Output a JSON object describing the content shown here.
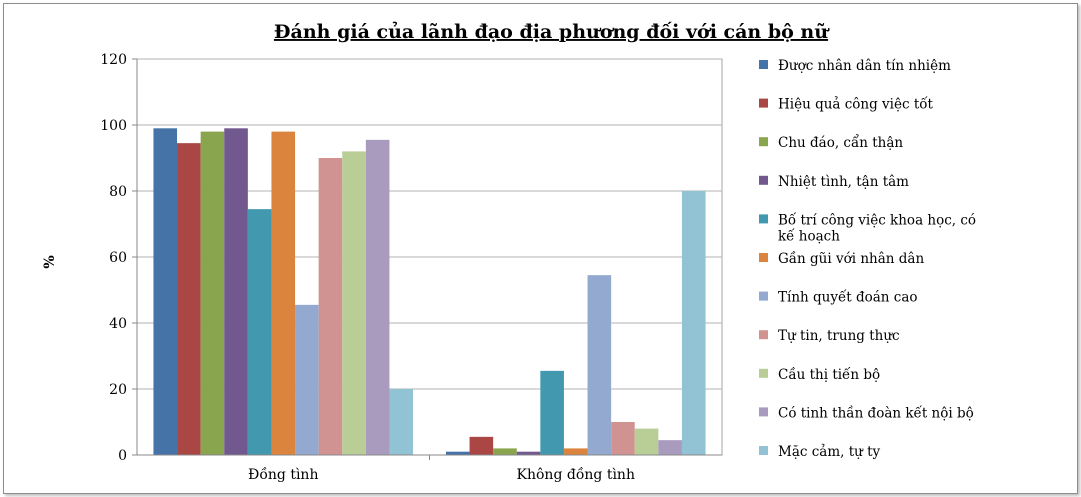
{
  "chart_data": {
    "type": "bar",
    "title": "Đánh giá của lãnh đạo địa phương đối với cán bộ nữ",
    "ylabel": "%",
    "xlabel": "",
    "ylim": [
      0,
      120
    ],
    "yticks": [
      0,
      20,
      40,
      60,
      80,
      100,
      120
    ],
    "grid": true,
    "legend_position": "right",
    "categories": [
      "Đồng tình",
      "Không đồng tình"
    ],
    "series": [
      {
        "name": "Được nhân dân tín nhiệm",
        "color": "#4572a7",
        "values": [
          99,
          1
        ]
      },
      {
        "name": "Hiệu quả công việc tốt",
        "color": "#aa4643",
        "values": [
          94.5,
          5.5
        ]
      },
      {
        "name": "Chu đáo, cẩn thận",
        "color": "#89a54e",
        "values": [
          98,
          2
        ]
      },
      {
        "name": "Nhiệt tình, tận tâm",
        "color": "#71588f",
        "values": [
          99,
          1
        ]
      },
      {
        "name": "Bố trí công việc khoa học, có kế hoạch",
        "color": "#4198af",
        "values": [
          74.5,
          25.5
        ]
      },
      {
        "name": "Gần gũi với nhân dân",
        "color": "#db843d",
        "values": [
          98,
          2
        ]
      },
      {
        "name": "Tính quyết đoán cao",
        "color": "#93a9cf",
        "values": [
          45.5,
          54.5
        ]
      },
      {
        "name": "Tự tin, trung thực",
        "color": "#d19392",
        "values": [
          90,
          10
        ]
      },
      {
        "name": "Cầu thị tiến bộ",
        "color": "#b9cd96",
        "values": [
          92,
          8
        ]
      },
      {
        "name": "Có tinh thần đoàn kết nội bộ",
        "color": "#a99bbd",
        "values": [
          95.5,
          4.5
        ]
      },
      {
        "name": "Mặc cảm, tự ty",
        "color": "#92c3d4",
        "values": [
          20,
          80
        ]
      }
    ]
  }
}
